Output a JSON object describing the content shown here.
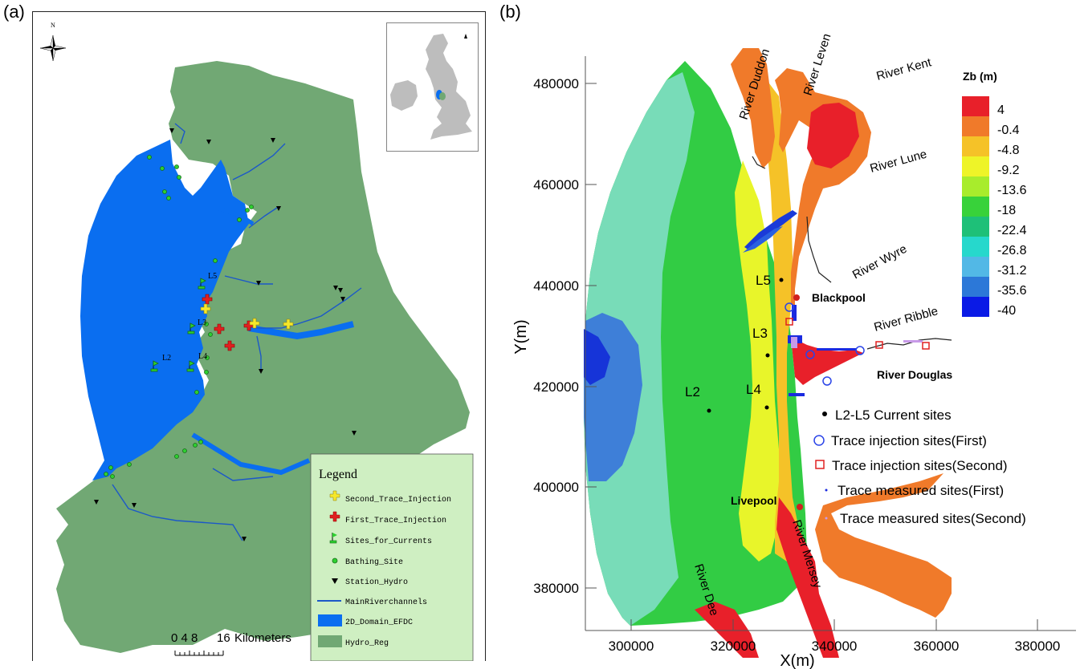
{
  "panel_a": {
    "label": "(a)",
    "north_label": "N",
    "labels": {
      "L2": "L2",
      "L3": "L3",
      "L4": "L4",
      "L5": "L5"
    },
    "legend": {
      "title": "Legend",
      "items": [
        {
          "label": "Second_Trace_Injection",
          "symbol": "plus-yellow"
        },
        {
          "label": "First_Trace_Injection",
          "symbol": "plus-red"
        },
        {
          "label": "Sites_for_Currents",
          "symbol": "flag-green"
        },
        {
          "label": "Bathing_Site",
          "symbol": "dot-green"
        },
        {
          "label": "Station_Hydro",
          "symbol": "triangle-black"
        },
        {
          "label": "MainRiverchannels",
          "symbol": "line-blue"
        },
        {
          "label": "2D_Domain_EFDC",
          "symbol": "rect-blue"
        },
        {
          "label": "Hydro_Reg",
          "symbol": "rect-green"
        }
      ]
    },
    "scalebar": {
      "ticks": "0 4 8",
      "major": "16",
      "unit": "Kilometers"
    },
    "colors": {
      "domain": "#0a6ef0",
      "region": "#71a874",
      "river": "#1c58c8",
      "legend_bg": "#cfefc2"
    }
  },
  "panel_b": {
    "label": "(b)",
    "colorbar": {
      "title": "Zb (m)",
      "labels": [
        "4",
        "-0.4",
        "-4.8",
        "-9.2",
        "-13.6",
        "-18",
        "-22.4",
        "-26.8",
        "-31.2",
        "-35.6",
        "-40"
      ],
      "colors": [
        "#e8202a",
        "#f07a2a",
        "#f5c228",
        "#eef428",
        "#a8ec2c",
        "#38d23a",
        "#1ec078",
        "#26d8cc",
        "#52b8e6",
        "#2c78d8",
        "#0a1ae6"
      ]
    },
    "y_axis": {
      "label": "Y(m)",
      "ticks": [
        "480000",
        "460000",
        "440000",
        "420000",
        "400000",
        "380000"
      ]
    },
    "x_axis": {
      "label": "X(m)",
      "ticks": [
        "300000",
        "320000",
        "340000",
        "360000",
        "380000"
      ]
    },
    "rivers": [
      "River Duddon",
      "River Leven",
      "River Kent",
      "River Lune",
      "River Wyre",
      "River Ribble",
      "River Douglas",
      "River Dee",
      "River Mersey"
    ],
    "places": [
      "Blackpool",
      "Livepool"
    ],
    "sites": [
      "L5",
      "L3",
      "L2",
      "L4"
    ],
    "legend": [
      "L2-L5 Current sites",
      "Trace injection sites(First)",
      "Trace injection sites(Second)",
      "Trace measured sites(First)",
      "Trace measured sites(Second)"
    ]
  }
}
